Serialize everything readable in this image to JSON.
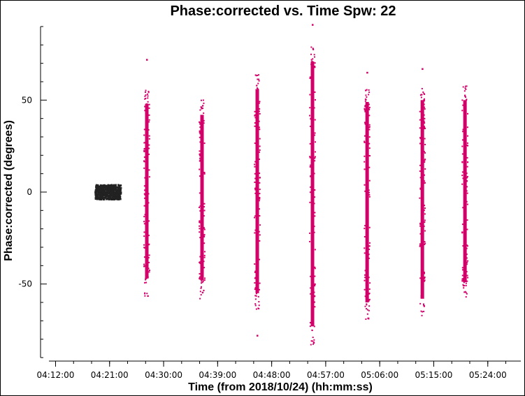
{
  "chart_data": {
    "type": "scatter",
    "title": "Phase:corrected vs. Time Spw: 22",
    "xlabel": "Time (from 2018/10/24) (hh:mm:ss)",
    "ylabel": "Phase:corrected (degrees)",
    "x_tick_labels": [
      "04:12:00",
      "04:21:00",
      "04:30:00",
      "04:39:00",
      "04:48:00",
      "04:57:00",
      "05:06:00",
      "05:15:00",
      "05:24:00"
    ],
    "x_ticks_minutes": [
      732,
      741,
      750,
      759,
      768,
      777,
      786,
      795,
      804
    ],
    "xlim_minutes": [
      729.5,
      809.5
    ],
    "y_ticks": [
      -50,
      0,
      50
    ],
    "ylim": [
      -90,
      90
    ],
    "grid": false,
    "colors": {
      "calibrator": "#222222",
      "target": "#d4006a"
    },
    "series": [
      {
        "color_key": "calibrator",
        "bands": [
          {
            "t_start": 738.6,
            "t_end": 742.9,
            "ymin": -4,
            "ymax": 4,
            "n": 600
          }
        ]
      },
      {
        "color_key": "target",
        "bands": [
          {
            "t": 747.2,
            "ymin": -57,
            "ymax": 56,
            "outliers": [
              72
            ]
          },
          {
            "t": 756.4,
            "ymin": -58,
            "ymax": 50,
            "outliers": []
          },
          {
            "t": 765.6,
            "ymin": -65,
            "ymax": 64,
            "outliers": [
              -78
            ]
          },
          {
            "t": 774.8,
            "ymin": -83,
            "ymax": 79,
            "outliers": [
              91
            ]
          },
          {
            "t": 783.9,
            "ymin": -70,
            "ymax": 57,
            "outliers": [
              65
            ]
          },
          {
            "t": 793.1,
            "ymin": -68,
            "ymax": 58,
            "outliers": [
              67
            ]
          },
          {
            "t": 800.2,
            "ymin": -59,
            "ymax": 58,
            "outliers": []
          }
        ]
      }
    ]
  }
}
